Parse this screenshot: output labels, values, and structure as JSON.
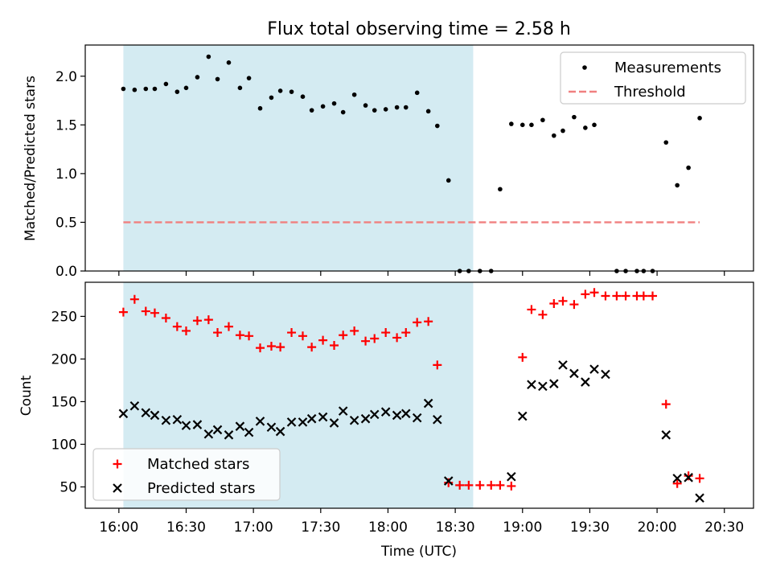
{
  "chart_data": {
    "title": "Flux total observing time = 2.58 h",
    "xlabel": "Time (UTC)",
    "x_ticks": [
      "16:00",
      "16:30",
      "17:00",
      "17:30",
      "18:00",
      "18:30",
      "19:00",
      "19:30",
      "20:00",
      "20:30"
    ],
    "shaded_span": {
      "start": "16:02",
      "end": "18:38",
      "color": "#add8e6"
    },
    "panels": [
      {
        "type": "scatter",
        "ylabel": "Matched/Predicted stars",
        "ylim": [
          0,
          2.32
        ],
        "y_ticks": [
          "0.0",
          "0.5",
          "1.0",
          "1.5",
          "2.0"
        ],
        "legend_position": "upper-right",
        "series": [
          {
            "name": "Measurements",
            "marker": "dot",
            "color": "#000000",
            "points": [
              [
                "16:02",
                1.87
              ],
              [
                "16:07",
                1.86
              ],
              [
                "16:12",
                1.87
              ],
              [
                "16:16",
                1.87
              ],
              [
                "16:21",
                1.92
              ],
              [
                "16:26",
                1.84
              ],
              [
                "16:30",
                1.88
              ],
              [
                "16:35",
                1.99
              ],
              [
                "16:40",
                2.2
              ],
              [
                "16:44",
                1.97
              ],
              [
                "16:49",
                2.14
              ],
              [
                "16:54",
                1.88
              ],
              [
                "16:58",
                1.98
              ],
              [
                "17:03",
                1.67
              ],
              [
                "17:08",
                1.78
              ],
              [
                "17:12",
                1.85
              ],
              [
                "17:17",
                1.84
              ],
              [
                "17:22",
                1.79
              ],
              [
                "17:26",
                1.65
              ],
              [
                "17:31",
                1.69
              ],
              [
                "17:36",
                1.72
              ],
              [
                "17:40",
                1.63
              ],
              [
                "17:45",
                1.81
              ],
              [
                "17:50",
                1.7
              ],
              [
                "17:54",
                1.65
              ],
              [
                "17:59",
                1.66
              ],
              [
                "18:04",
                1.68
              ],
              [
                "18:08",
                1.68
              ],
              [
                "18:13",
                1.83
              ],
              [
                "18:18",
                1.64
              ],
              [
                "18:22",
                1.49
              ],
              [
                "18:27",
                0.93
              ],
              [
                "18:32",
                0.0
              ],
              [
                "18:36",
                0.0
              ],
              [
                "18:41",
                0.0
              ],
              [
                "18:46",
                0.0
              ],
              [
                "18:50",
                0.84
              ],
              [
                "18:55",
                1.51
              ],
              [
                "19:00",
                1.5
              ],
              [
                "19:04",
                1.5
              ],
              [
                "19:09",
                1.55
              ],
              [
                "19:14",
                1.39
              ],
              [
                "19:18",
                1.44
              ],
              [
                "19:23",
                1.58
              ],
              [
                "19:28",
                1.47
              ],
              [
                "19:32",
                1.5
              ],
              [
                "19:42",
                0.0
              ],
              [
                "19:46",
                0.0
              ],
              [
                "19:51",
                0.0
              ],
              [
                "19:54",
                0.0
              ],
              [
                "19:58",
                0.0
              ],
              [
                "20:04",
                1.32
              ],
              [
                "20:09",
                0.88
              ],
              [
                "20:14",
                1.06
              ],
              [
                "20:19",
                1.57
              ]
            ]
          },
          {
            "name": "Threshold",
            "marker": "dashed-line",
            "color": "#f08080",
            "points": [
              [
                "16:02",
                0.5
              ],
              [
                "20:19",
                0.5
              ]
            ]
          }
        ]
      },
      {
        "type": "scatter",
        "ylabel": "Count",
        "ylim": [
          25,
          290
        ],
        "y_ticks": [
          "50",
          "100",
          "150",
          "200",
          "250"
        ],
        "legend_position": "lower-left",
        "series": [
          {
            "name": "Matched stars",
            "marker": "plus",
            "color": "#ff0000",
            "points": [
              [
                "16:02",
                255
              ],
              [
                "16:07",
                270
              ],
              [
                "16:12",
                256
              ],
              [
                "16:16",
                254
              ],
              [
                "16:21",
                248
              ],
              [
                "16:26",
                238
              ],
              [
                "16:30",
                233
              ],
              [
                "16:35",
                245
              ],
              [
                "16:40",
                246
              ],
              [
                "16:44",
                231
              ],
              [
                "16:49",
                238
              ],
              [
                "16:54",
                228
              ],
              [
                "16:58",
                227
              ],
              [
                "17:03",
                213
              ],
              [
                "17:08",
                215
              ],
              [
                "17:12",
                214
              ],
              [
                "17:17",
                231
              ],
              [
                "17:22",
                227
              ],
              [
                "17:26",
                214
              ],
              [
                "17:31",
                222
              ],
              [
                "17:36",
                216
              ],
              [
                "17:40",
                228
              ],
              [
                "17:45",
                233
              ],
              [
                "17:50",
                221
              ],
              [
                "17:54",
                224
              ],
              [
                "17:59",
                231
              ],
              [
                "18:04",
                225
              ],
              [
                "18:08",
                231
              ],
              [
                "18:13",
                243
              ],
              [
                "18:18",
                244
              ],
              [
                "18:22",
                193
              ],
              [
                "18:27",
                55
              ],
              [
                "18:32",
                52
              ],
              [
                "18:36",
                52
              ],
              [
                "18:41",
                52
              ],
              [
                "18:46",
                52
              ],
              [
                "18:50",
                52
              ],
              [
                "18:55",
                51
              ],
              [
                "19:00",
                202
              ],
              [
                "19:04",
                258
              ],
              [
                "19:09",
                252
              ],
              [
                "19:14",
                265
              ],
              [
                "19:18",
                268
              ],
              [
                "19:23",
                264
              ],
              [
                "19:28",
                276
              ],
              [
                "19:32",
                278
              ],
              [
                "19:37",
                274
              ],
              [
                "19:42",
                274
              ],
              [
                "19:46",
                274
              ],
              [
                "19:51",
                274
              ],
              [
                "19:54",
                274
              ],
              [
                "19:58",
                274
              ],
              [
                "20:04",
                147
              ],
              [
                "20:09",
                54
              ],
              [
                "20:14",
                63
              ],
              [
                "20:19",
                60
              ]
            ]
          },
          {
            "name": "Predicted stars",
            "marker": "x",
            "color": "#000000",
            "points": [
              [
                "16:02",
                136
              ],
              [
                "16:07",
                145
              ],
              [
                "16:12",
                137
              ],
              [
                "16:16",
                134
              ],
              [
                "16:21",
                128
              ],
              [
                "16:26",
                129
              ],
              [
                "16:30",
                122
              ],
              [
                "16:35",
                123
              ],
              [
                "16:40",
                112
              ],
              [
                "16:44",
                117
              ],
              [
                "16:49",
                111
              ],
              [
                "16:54",
                121
              ],
              [
                "16:58",
                114
              ],
              [
                "17:03",
                127
              ],
              [
                "17:08",
                120
              ],
              [
                "17:12",
                115
              ],
              [
                "17:17",
                126
              ],
              [
                "17:22",
                126
              ],
              [
                "17:26",
                130
              ],
              [
                "17:31",
                132
              ],
              [
                "17:36",
                125
              ],
              [
                "17:40",
                139
              ],
              [
                "17:45",
                128
              ],
              [
                "17:50",
                130
              ],
              [
                "17:54",
                135
              ],
              [
                "17:59",
                138
              ],
              [
                "18:04",
                134
              ],
              [
                "18:08",
                136
              ],
              [
                "18:13",
                131
              ],
              [
                "18:18",
                148
              ],
              [
                "18:22",
                129
              ],
              [
                "18:27",
                57
              ],
              [
                "18:55",
                62
              ],
              [
                "19:00",
                133
              ],
              [
                "19:04",
                170
              ],
              [
                "19:09",
                168
              ],
              [
                "19:14",
                171
              ],
              [
                "19:18",
                193
              ],
              [
                "19:23",
                183
              ],
              [
                "19:28",
                173
              ],
              [
                "19:32",
                188
              ],
              [
                "19:37",
                182
              ],
              [
                "20:04",
                111
              ],
              [
                "20:09",
                60
              ],
              [
                "20:14",
                61
              ],
              [
                "20:19",
                37
              ]
            ]
          }
        ]
      }
    ]
  }
}
